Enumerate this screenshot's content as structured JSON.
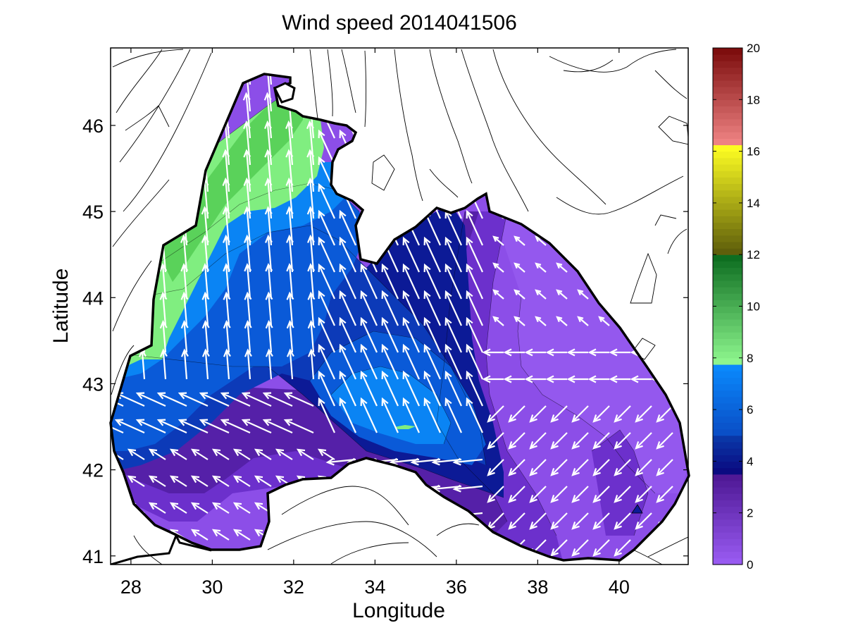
{
  "chart_data": {
    "type": "heatmap",
    "title": "Wind speed 2014041506",
    "xlabel": "Longitude",
    "ylabel": "Latitude",
    "xlim": [
      27.5,
      41.7
    ],
    "ylim": [
      40.9,
      46.9
    ],
    "xticks": [
      28,
      30,
      32,
      34,
      36,
      38,
      40
    ],
    "yticks": [
      41,
      42,
      43,
      44,
      45,
      46
    ],
    "colorbar": {
      "min": 0,
      "max": 20,
      "ticks": [
        0,
        2,
        4,
        6,
        8,
        10,
        12,
        14,
        16,
        18,
        20
      ],
      "segments": [
        {
          "from": 0,
          "to": 3.6,
          "colors": [
            "#9b5cf5",
            "#4a1590"
          ]
        },
        {
          "from": 3.6,
          "to": 5.0,
          "colors": [
            "#0a0a80",
            "#0a3aaa"
          ]
        },
        {
          "from": 5.0,
          "to": 7.8,
          "colors": [
            "#0a4cc4",
            "#0a8cff"
          ]
        },
        {
          "from": 7.8,
          "to": 12.0,
          "colors": [
            "#8ff88f",
            "#0a6a1e"
          ]
        },
        {
          "from": 12.0,
          "to": 16.2,
          "colors": [
            "#5a5a0a",
            "#ffff22"
          ]
        },
        {
          "from": 16.2,
          "to": 20.0,
          "colors": [
            "#f48888",
            "#7a0a0a"
          ]
        }
      ]
    },
    "wind_speed_regions": [
      {
        "level": "0-2 m/s",
        "color": "#8c4ee8",
        "area": "eastern basin"
      },
      {
        "level": "2-3.5 m/s",
        "color": "#5c22b8",
        "area": "southern coast"
      },
      {
        "level": "3.5-5 m/s",
        "color": "#0c1898",
        "area": "central basin"
      },
      {
        "level": "5-6.5 m/s",
        "color": "#0a54d4",
        "area": "western shelf"
      },
      {
        "level": "6.5-7.8 m/s",
        "color": "#0a84f4",
        "area": "west and center"
      },
      {
        "level": "7.8-9 m/s",
        "color": "#80ee80",
        "area": "northwestern shelf"
      },
      {
        "level": "9-10 m/s",
        "color": "#5ad25a",
        "area": "northwest core"
      }
    ]
  }
}
